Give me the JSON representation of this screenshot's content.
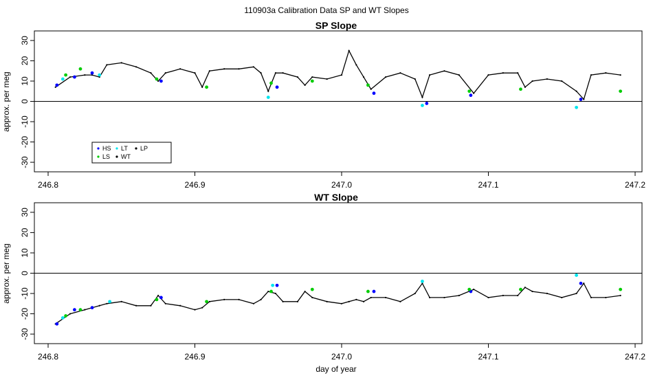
{
  "page_title": "110903a   Calibration Data SP and WT Slopes",
  "xlabel_shared": "day of year",
  "legend": {
    "entries": [
      {
        "label": "HS",
        "color": "#0000ff"
      },
      {
        "label": "LT",
        "color": "#00e5ee"
      },
      {
        "label": "LP",
        "color": "#000000"
      },
      {
        "label": "LS",
        "color": "#00cc00"
      },
      {
        "label": "WT",
        "color": "#000000"
      }
    ]
  },
  "chart_data": [
    {
      "type": "line",
      "title": "SP Slope",
      "xlabel": "",
      "ylabel": "approx. per meg",
      "xlim": [
        246.8,
        247.2
      ],
      "ylim": [
        -32,
        32
      ],
      "x_ticks": [
        "246.8",
        "246.9",
        "247.0",
        "247.1",
        "247.2"
      ],
      "y_ticks": [
        "-30",
        "-20",
        "-10",
        "0",
        "10",
        "20",
        "30"
      ],
      "reference_line_y": 0,
      "series": [
        {
          "name": "WT",
          "color": "#000000",
          "x": [
            246.805,
            246.815,
            246.825,
            246.83,
            246.835,
            246.84,
            246.85,
            246.86,
            246.87,
            246.875,
            246.88,
            246.89,
            246.9,
            246.905,
            246.91,
            246.92,
            246.93,
            246.94,
            246.945,
            246.95,
            246.955,
            246.96,
            246.97,
            246.975,
            246.98,
            246.99,
            247.0,
            247.005,
            247.01,
            247.015,
            247.02,
            247.03,
            247.04,
            247.05,
            247.055,
            247.06,
            247.07,
            247.08,
            247.09,
            247.1,
            247.11,
            247.12,
            247.125,
            247.13,
            247.14,
            247.15,
            247.16,
            247.165,
            247.17,
            247.18,
            247.19
          ],
          "y": [
            7,
            12,
            13,
            13,
            12,
            18,
            19,
            17,
            14,
            10,
            14,
            16,
            14,
            7,
            15,
            16,
            16,
            17,
            14,
            5,
            14,
            14,
            12,
            8,
            12,
            11,
            13,
            25,
            18,
            12,
            6,
            12,
            14,
            11,
            2,
            13,
            15,
            13,
            4,
            13,
            14,
            14,
            7,
            10,
            11,
            10,
            5,
            1,
            13,
            14,
            13
          ]
        },
        {
          "name": "HS",
          "color": "#0000ff",
          "x": [
            246.806,
            246.818,
            246.83,
            246.877,
            246.956,
            247.022,
            247.058,
            247.088,
            247.163
          ],
          "y": [
            8,
            12,
            14,
            10,
            7,
            4,
            -1,
            3,
            1
          ]
        },
        {
          "name": "LT",
          "color": "#00e5ee",
          "x": [
            246.81,
            246.835,
            246.95,
            247.055,
            247.16
          ],
          "y": [
            11,
            13,
            2,
            -2,
            -3
          ]
        },
        {
          "name": "LS",
          "color": "#00cc00",
          "x": [
            246.812,
            246.822,
            246.874,
            246.908,
            246.952,
            246.98,
            247.018,
            247.087,
            247.122,
            247.19
          ],
          "y": [
            13,
            16,
            11,
            7,
            9,
            10,
            8,
            5,
            6,
            5
          ]
        }
      ]
    },
    {
      "type": "line",
      "title": "WT Slope",
      "xlabel": "day of year",
      "ylabel": "approx. per meg",
      "xlim": [
        246.8,
        247.2
      ],
      "ylim": [
        -32,
        32
      ],
      "x_ticks": [
        "246.8",
        "246.9",
        "247.0",
        "247.1",
        "247.2"
      ],
      "y_ticks": [
        "-30",
        "-20",
        "-10",
        "0",
        "10",
        "20",
        "30"
      ],
      "reference_line_y": 0,
      "series": [
        {
          "name": "WT",
          "color": "#000000",
          "x": [
            246.805,
            246.815,
            246.825,
            246.83,
            246.835,
            246.84,
            246.85,
            246.86,
            246.87,
            246.875,
            246.88,
            246.89,
            246.9,
            246.905,
            246.91,
            246.92,
            246.93,
            246.94,
            246.945,
            246.95,
            246.955,
            246.96,
            246.97,
            246.975,
            246.98,
            246.99,
            247.0,
            247.005,
            247.01,
            247.015,
            247.02,
            247.03,
            247.04,
            247.05,
            247.055,
            247.06,
            247.07,
            247.08,
            247.09,
            247.1,
            247.11,
            247.12,
            247.125,
            247.13,
            247.14,
            247.15,
            247.16,
            247.165,
            247.17,
            247.18,
            247.19
          ],
          "y": [
            -25,
            -20,
            -18,
            -17,
            -16,
            -15,
            -14,
            -16,
            -16,
            -11,
            -15,
            -16,
            -18,
            -17,
            -14,
            -13,
            -13,
            -15,
            -13,
            -9,
            -10,
            -14,
            -14,
            -9,
            -12,
            -14,
            -15,
            -14,
            -13,
            -14,
            -12,
            -12,
            -14,
            -10,
            -5,
            -12,
            -12,
            -11,
            -8,
            -12,
            -11,
            -11,
            -7,
            -9,
            -10,
            -12,
            -10,
            -5,
            -12,
            -12,
            -11
          ]
        },
        {
          "name": "HS",
          "color": "#0000ff",
          "x": [
            246.806,
            246.818,
            246.83,
            246.877,
            246.956,
            247.022,
            247.088,
            247.163
          ],
          "y": [
            -25,
            -18,
            -17,
            -12,
            -6,
            -9,
            -9,
            -5
          ]
        },
        {
          "name": "LT",
          "color": "#00e5ee",
          "x": [
            246.81,
            246.842,
            246.953,
            247.055,
            247.16
          ],
          "y": [
            -22,
            -14,
            -6,
            -4,
            -1
          ]
        },
        {
          "name": "LS",
          "color": "#00cc00",
          "x": [
            246.812,
            246.822,
            246.874,
            246.908,
            246.952,
            246.98,
            247.018,
            247.087,
            247.122,
            247.19
          ],
          "y": [
            -21,
            -18,
            -13,
            -14,
            -9,
            -8,
            -9,
            -8,
            -8,
            -8
          ]
        }
      ]
    }
  ]
}
